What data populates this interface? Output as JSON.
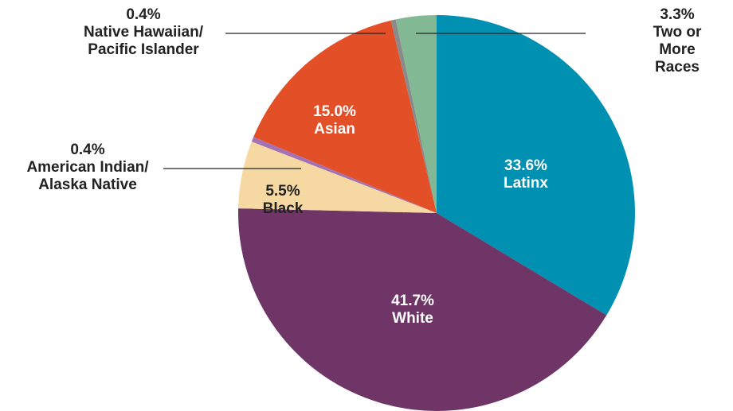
{
  "chart_data": {
    "type": "pie",
    "categories": [
      "Latinx",
      "White",
      "Black",
      "American Indian/\nAlaska Native",
      "Asian",
      "Native Hawaiian/\nPacific Islander",
      "Two or\nMore Races"
    ],
    "values": [
      33.6,
      41.7,
      5.5,
      0.4,
      15.0,
      0.4,
      3.3
    ],
    "value_labels": [
      "33.6%",
      "41.7%",
      "5.5%",
      "0.4%",
      "15.0%",
      "0.4%",
      "3.3%"
    ],
    "colors": [
      "#0090b2",
      "#6e3566",
      "#f6d9a2",
      "#a472b4",
      "#e34f27",
      "#8a8a8a",
      "#82b893"
    ]
  }
}
